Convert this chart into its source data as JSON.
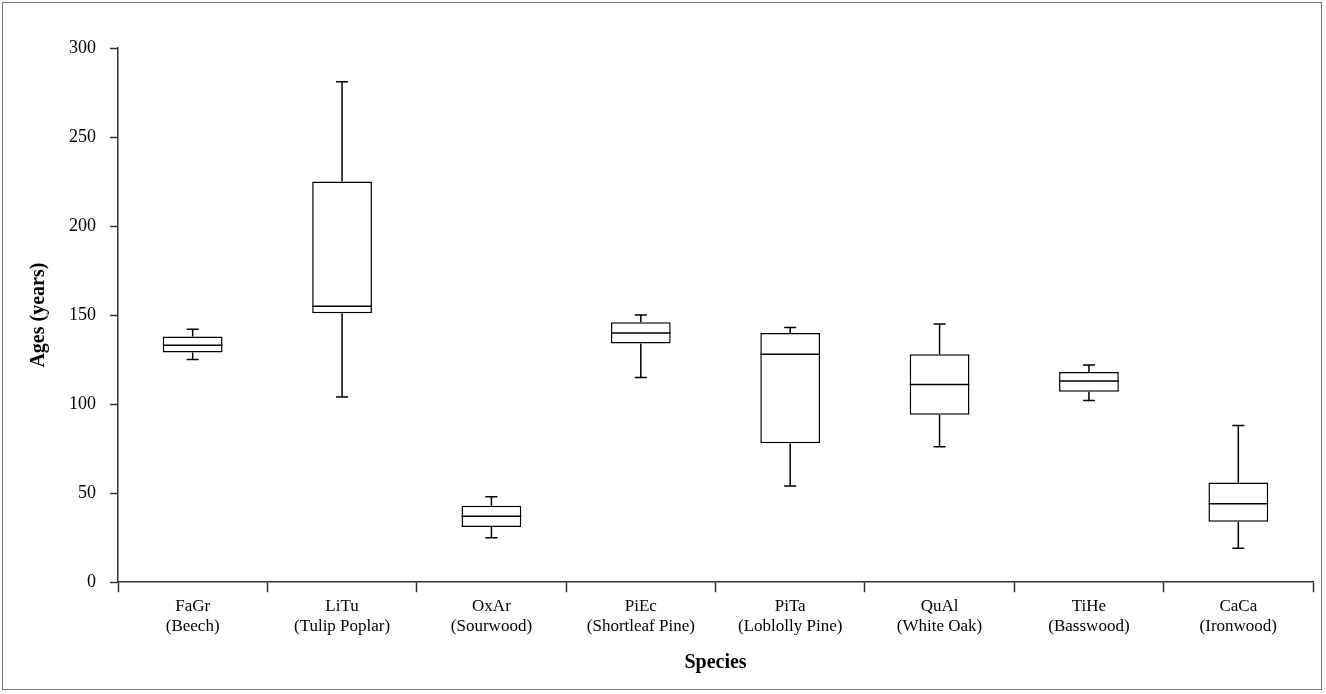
{
  "chart_data": {
    "type": "box",
    "xlabel": "Species",
    "ylabel": "Ages (years)",
    "categories": [
      "FaGr\n(Beech)",
      "LiTu\n(Tulip Poplar)",
      "OxAr\n(Sourwood)",
      "PiEc\n(Shortleaf Pine)",
      "PiTa\n(Loblolly Pine)",
      "QuAl\n(White Oak)",
      "TiHe\n(Basswood)",
      "CaCa\n(Ironwood)"
    ],
    "boxes": [
      {
        "low": 125,
        "q1": 129,
        "median": 133,
        "q3": 138,
        "high": 142
      },
      {
        "low": 104,
        "q1": 151,
        "median": 155,
        "q3": 225,
        "high": 281
      },
      {
        "low": 25,
        "q1": 31,
        "median": 37,
        "q3": 43,
        "high": 48
      },
      {
        "low": 115,
        "q1": 134,
        "median": 140,
        "q3": 146,
        "high": 150
      },
      {
        "low": 54,
        "q1": 78,
        "median": 128,
        "q3": 140,
        "high": 143
      },
      {
        "low": 76,
        "q1": 94,
        "median": 111,
        "q3": 128,
        "high": 145
      },
      {
        "low": 102,
        "q1": 107,
        "median": 113,
        "q3": 118,
        "high": 122
      },
      {
        "low": 19,
        "q1": 34,
        "median": 44,
        "q3": 56,
        "high": 88
      }
    ],
    "color": "#000000",
    "ylim": [
      0,
      300
    ],
    "yticks": [
      0,
      50,
      100,
      150,
      200,
      250,
      300
    ],
    "grid": false,
    "legend": false
  }
}
